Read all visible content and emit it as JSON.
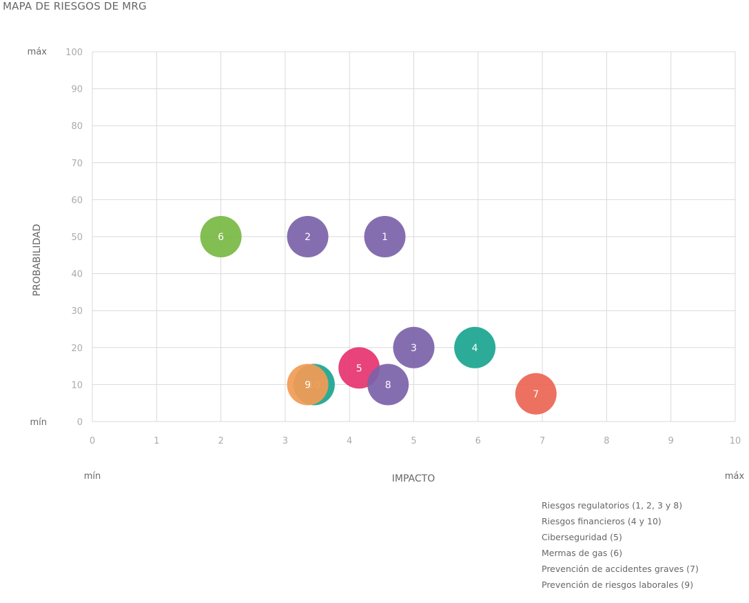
{
  "title": "MAPA DE RIESGOS DE MRG",
  "chart_data": {
    "type": "scatter",
    "title": "MAPA DE RIESGOS DE MRG",
    "xlabel": "IMPACTO",
    "ylabel": "PROBABILIDAD",
    "xlim": [
      0,
      10
    ],
    "ylim": [
      0,
      100
    ],
    "x_ticks": [
      "0",
      "1",
      "2",
      "3",
      "4",
      "5",
      "6",
      "7",
      "8",
      "9",
      "10"
    ],
    "y_ticks": [
      "0",
      "10",
      "20",
      "30",
      "40",
      "50",
      "60",
      "70",
      "80",
      "90",
      "100"
    ],
    "x_min_label": "mín",
    "x_max_label": "máx",
    "y_min_label": "mín",
    "y_max_label": "máx",
    "grid": true,
    "points": [
      {
        "label": "10",
        "x": 3.45,
        "y": 10,
        "color": "#1aa58f"
      },
      {
        "label": "6",
        "x": 2.0,
        "y": 50,
        "color": "#78b843"
      },
      {
        "label": "2",
        "x": 3.35,
        "y": 50,
        "color": "#7b62a9"
      },
      {
        "label": "1",
        "x": 4.55,
        "y": 50,
        "color": "#7b62a9"
      },
      {
        "label": "3",
        "x": 5.0,
        "y": 20,
        "color": "#7b62a9"
      },
      {
        "label": "4",
        "x": 5.95,
        "y": 20,
        "color": "#1aa58f"
      },
      {
        "label": "5",
        "x": 4.15,
        "y": 14.5,
        "color": "#e6336f"
      },
      {
        "label": "8",
        "x": 4.6,
        "y": 10,
        "color": "#7b62a9"
      },
      {
        "label": "7",
        "x": 6.9,
        "y": 7.5,
        "color": "#ec6553"
      },
      {
        "label": "9",
        "x": 3.35,
        "y": 10,
        "color": "#f39a54"
      }
    ]
  },
  "legend": [
    "Riesgos regulatorios (1, 2, 3 y 8)",
    "Riesgos financieros (4 y 10)",
    "Ciberseguridad (5)",
    "Mermas de gas (6)",
    "Prevención de accidentes graves (7)",
    "Prevención de riesgos laborales (9)"
  ]
}
